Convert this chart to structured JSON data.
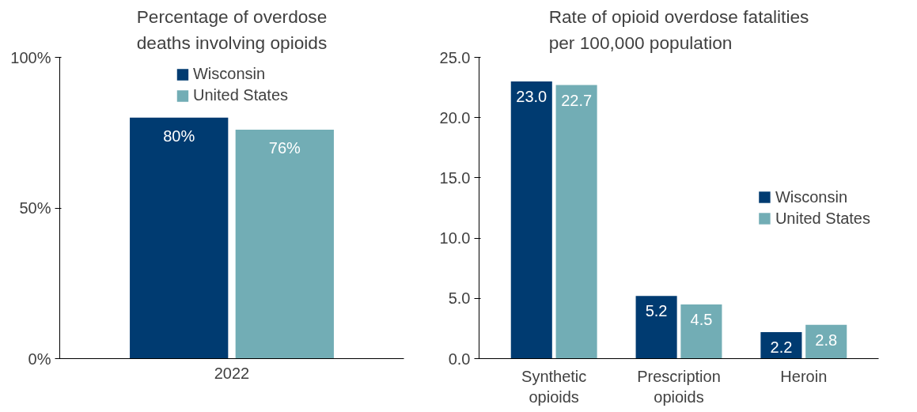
{
  "chart_data": [
    {
      "type": "bar",
      "title": "Percentage of overdose deaths involving opioids",
      "categories": [
        "2022"
      ],
      "series": [
        {
          "name": "Wisconsin",
          "color": "#003b71",
          "values": [
            80
          ],
          "value_labels": [
            "80%"
          ]
        },
        {
          "name": "United States",
          "color": "#72adb5",
          "values": [
            76
          ],
          "value_labels": [
            "76%"
          ]
        }
      ],
      "ylim": [
        0,
        100
      ],
      "yticks": [
        {
          "value": 0,
          "label": "0%"
        },
        {
          "value": 50,
          "label": "50%"
        },
        {
          "value": 100,
          "label": "100%"
        }
      ],
      "grid": false,
      "legend": "top"
    },
    {
      "type": "bar",
      "title": "Rate of opioid overdose fatalities per 100,000 population",
      "categories": [
        "Synthetic opioids",
        "Prescription opioids",
        "Heroin"
      ],
      "series": [
        {
          "name": "Wisconsin",
          "color": "#003b71",
          "values": [
            23.0,
            5.2,
            2.2
          ],
          "value_labels": [
            "23.0",
            "5.2",
            "2.2"
          ]
        },
        {
          "name": "United States",
          "color": "#72adb5",
          "values": [
            22.7,
            4.5,
            2.8
          ],
          "value_labels": [
            "22.7",
            "4.5",
            "2.8"
          ]
        }
      ],
      "ylim": [
        0,
        25
      ],
      "yticks": [
        {
          "value": 0,
          "label": "0.0"
        },
        {
          "value": 5,
          "label": "5.0"
        },
        {
          "value": 10,
          "label": "10.0"
        },
        {
          "value": 15,
          "label": "15.0"
        },
        {
          "value": 20,
          "label": "20.0"
        },
        {
          "value": 25,
          "label": "25.0"
        }
      ],
      "grid": false,
      "legend": "right"
    }
  ]
}
